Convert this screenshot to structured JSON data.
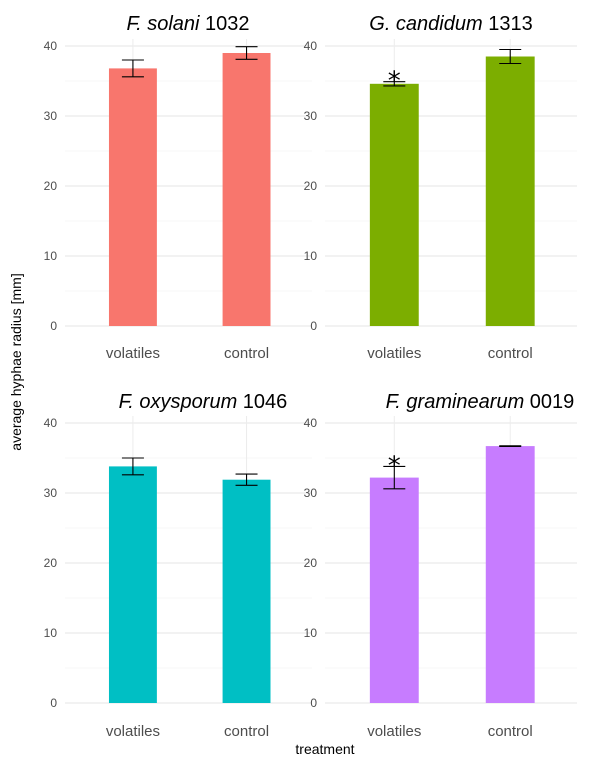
{
  "x_axis_title": "treatment",
  "y_axis_title": "average hyphae radius [mm]",
  "chart_data": [
    {
      "type": "bar",
      "title_italic": "F. solani",
      "title_plain": " 1032",
      "categories": [
        "volatiles",
        "control"
      ],
      "values": [
        36.8,
        39.0
      ],
      "errors": [
        1.2,
        0.9
      ],
      "significance": [
        "",
        ""
      ],
      "color": "#F8766D",
      "ylim": [
        0,
        41
      ],
      "yticks": [
        0,
        10,
        20,
        30,
        40
      ],
      "grid": true
    },
    {
      "type": "bar",
      "title_italic": "G. candidum",
      "title_plain": " 1313",
      "categories": [
        "volatiles",
        "control"
      ],
      "values": [
        34.6,
        38.5
      ],
      "errors": [
        0.3,
        1.0
      ],
      "significance": [
        "*",
        ""
      ],
      "color": "#7CAE00",
      "ylim": [
        0,
        41
      ],
      "yticks": [
        0,
        10,
        20,
        30,
        40
      ],
      "grid": true
    },
    {
      "type": "bar",
      "title_italic": "F. oxysporum",
      "title_plain": " 1046",
      "categories": [
        "volatiles",
        "control"
      ],
      "values": [
        33.8,
        31.9
      ],
      "errors": [
        1.2,
        0.8
      ],
      "significance": [
        "",
        ""
      ],
      "color": "#00BFC4",
      "ylim": [
        0,
        41
      ],
      "yticks": [
        0,
        10,
        20,
        30,
        40
      ],
      "grid": true
    },
    {
      "type": "bar",
      "title_italic": "F. graminearum",
      "title_plain": " 0019",
      "categories": [
        "volatiles",
        "control"
      ],
      "values": [
        32.2,
        36.7
      ],
      "errors": [
        1.6,
        0.05
      ],
      "significance": [
        "*",
        ""
      ],
      "color": "#C77CFF",
      "ylim": [
        0,
        41
      ],
      "yticks": [
        0,
        10,
        20,
        30,
        40
      ],
      "grid": true
    }
  ]
}
